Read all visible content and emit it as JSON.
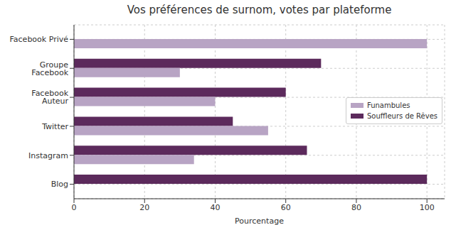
{
  "chart_data": {
    "type": "bar",
    "title": "Vos préférences de surnom, votes par plateforme",
    "orientation": "horizontal",
    "x_label": "Pourcentage",
    "categories": [
      "Facebook Privé",
      "Groupe Facebook",
      "Facebook Auteur",
      "Twitter",
      "Instagram",
      "Blog"
    ],
    "series": [
      {
        "name": "Funambules",
        "color": "#b8a4c4",
        "values": [
          100,
          30,
          40,
          55,
          34,
          0
        ]
      },
      {
        "name": "Souffleurs de Rêves",
        "color": "#5c2a5c",
        "values": [
          0,
          70,
          60,
          45,
          66,
          100
        ]
      }
    ],
    "xlim": [
      0,
      105
    ],
    "xticks": [
      0,
      20,
      40,
      60,
      80,
      100
    ],
    "grid": true,
    "legend": "right"
  }
}
